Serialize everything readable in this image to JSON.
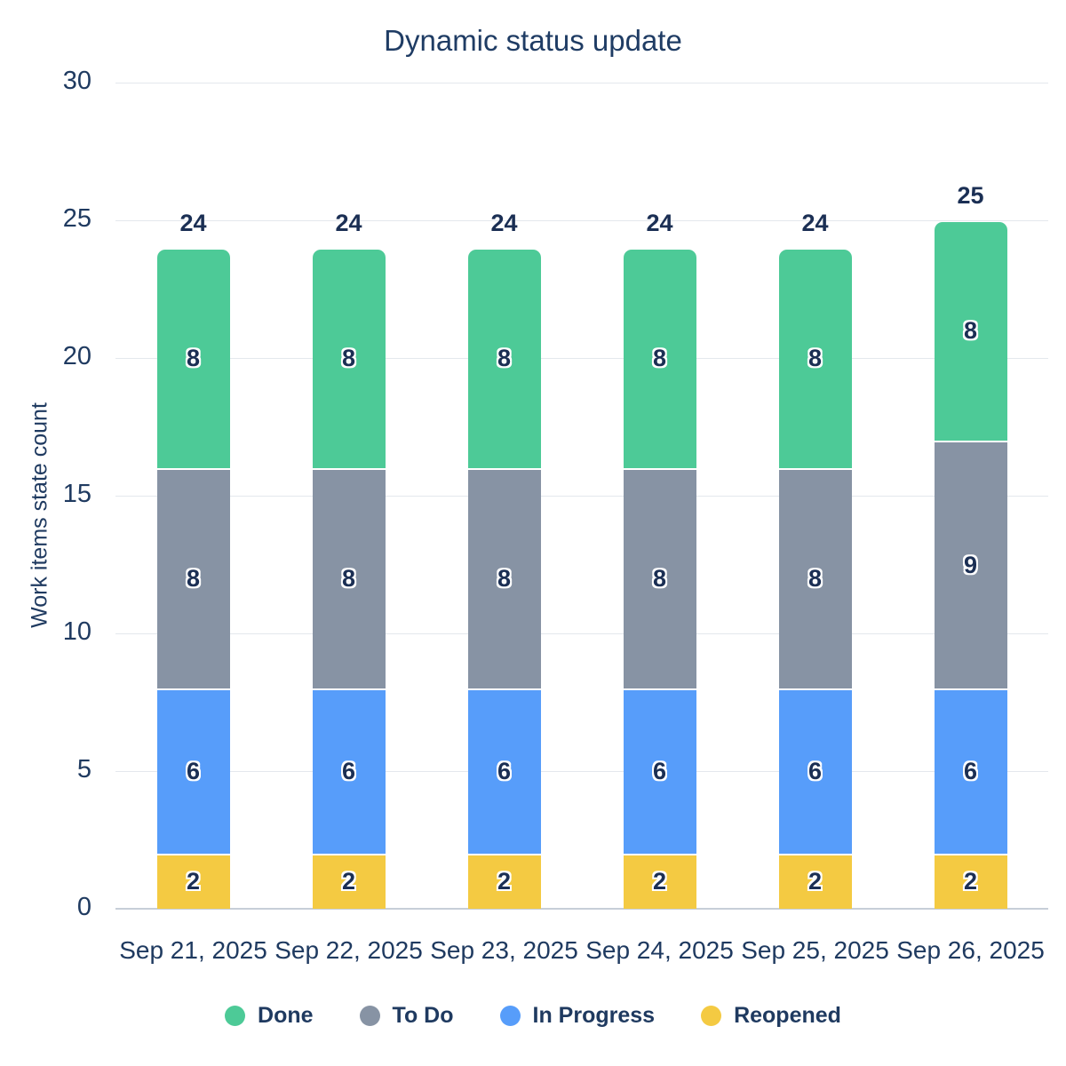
{
  "title": "Dynamic status update",
  "chart_data": {
    "type": "bar",
    "stacked": true,
    "title": "Dynamic status update",
    "xlabel": "",
    "ylabel": "Work items state count",
    "ylim": [
      0,
      30
    ],
    "yticks": [
      0,
      5,
      10,
      15,
      20,
      25,
      30
    ],
    "grid": true,
    "categories": [
      "Sep 21, 2025",
      "Sep 22, 2025",
      "Sep 23, 2025",
      "Sep 24, 2025",
      "Sep 25, 2025",
      "Sep 26, 2025"
    ],
    "series": [
      {
        "name": "Reopened",
        "color": "#f4ca42",
        "values": [
          2,
          2,
          2,
          2,
          2,
          2
        ]
      },
      {
        "name": "In Progress",
        "color": "#579dfa",
        "values": [
          6,
          6,
          6,
          6,
          6,
          6
        ]
      },
      {
        "name": "To Do",
        "color": "#8793a4",
        "values": [
          8,
          8,
          8,
          8,
          8,
          9
        ]
      },
      {
        "name": "Done",
        "color": "#4dca97",
        "values": [
          8,
          8,
          8,
          8,
          8,
          8
        ]
      }
    ],
    "totals": [
      24,
      24,
      24,
      24,
      24,
      25
    ],
    "legend_order": [
      "Done",
      "To Do",
      "In Progress",
      "Reopened"
    ],
    "legend_position": "bottom",
    "colors": {
      "text_navy": "#1f3a60",
      "label_navy": "#1b2f54",
      "gridline": "#e4e8ed",
      "axis_line": "#c7ced8",
      "background": "#ffffff"
    }
  }
}
